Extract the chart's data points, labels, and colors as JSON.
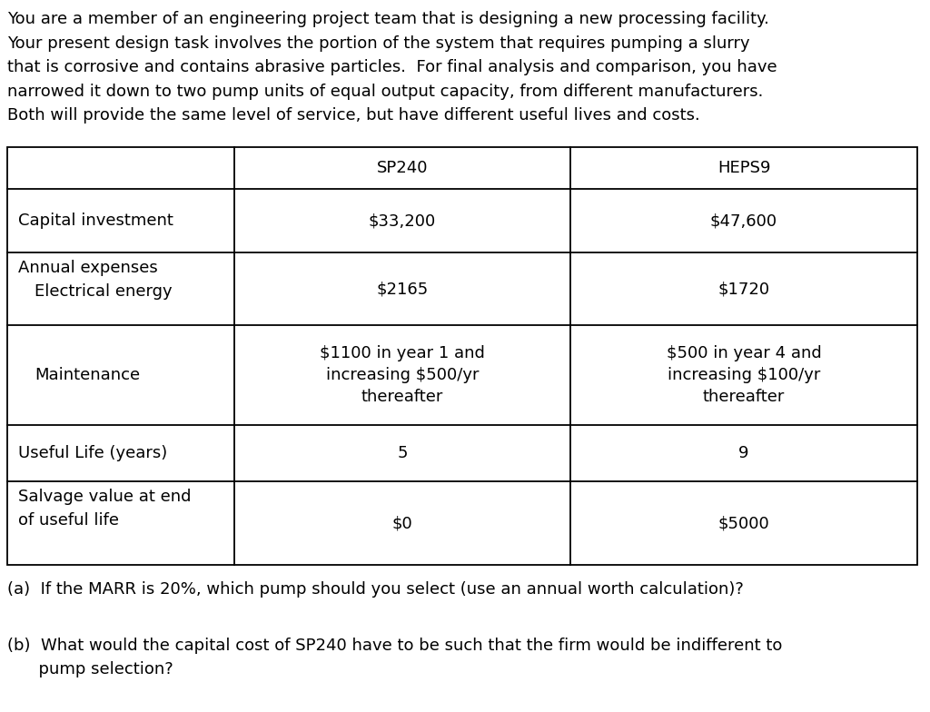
{
  "intro_line1": "You are a member of an engineering project team that is designing a new processing facility.",
  "intro_line2": "Your present design task involves the portion of the system that requires pumping a slurry",
  "intro_line3": "that is corrosive and contains abrasive particles.  For final analysis and comparison, you have",
  "intro_line4": "narrowed it down to two pump units of equal output capacity, from different manufacturers.",
  "intro_line5": "Both will provide the same level of service, but have different useful lives and costs.",
  "col_header_sp240": "SP240",
  "col_header_heps9": "HEPS9",
  "row1_label": "Capital investment",
  "row1_sp240": "$33,200",
  "row1_heps9": "$47,600",
  "row2a_label": "Annual expenses",
  "row2b_label": "   Electrical energy",
  "row2_sp240": "$2165",
  "row2_heps9": "$1720",
  "row3_label": "   Maintenance",
  "row3_sp240": "$1100 in year 1 and\nincreasing $500/yr\nthereafter",
  "row3_heps9": "$500 in year 4 and\nincreasing $100/yr\nthereafter",
  "row4_label": "Useful Life (years)",
  "row4_sp240": "5",
  "row4_heps9": "9",
  "row5a_label": "Salvage value at end",
  "row5b_label": "of useful life",
  "row5_sp240": "$0",
  "row5_heps9": "$5000",
  "question_a": "(a)  If the MARR is 20%, which pump should you select (use an annual worth calculation)?",
  "question_b1": "(b)  What would the capital cost of SP240 have to be such that the firm would be indifferent to",
  "question_b2": "      pump selection?",
  "font_size": 13.0,
  "bg_color": "#ffffff",
  "text_color": "#000000",
  "line_color": "#000000"
}
